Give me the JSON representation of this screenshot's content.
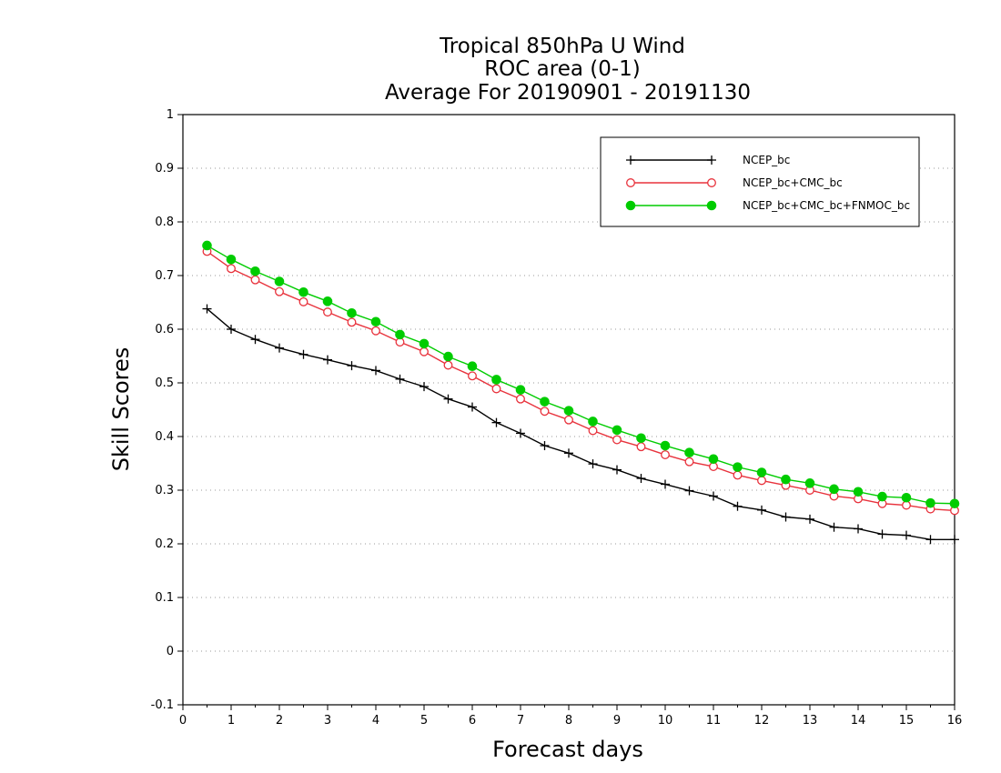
{
  "chart_data": {
    "type": "line",
    "title": [
      "Tropical 850hPa U Wind",
      "ROC area (0-1)",
      "Average For 20190901 - 20191130"
    ],
    "xlabel": "Forecast days",
    "ylabel": "Skill Scores",
    "xlim": [
      0,
      16
    ],
    "ylim": [
      -0.1,
      1
    ],
    "xticks": [
      "0",
      "1",
      "2",
      "3",
      "4",
      "5",
      "6",
      "7",
      "8",
      "9",
      "10",
      "11",
      "12",
      "13",
      "14",
      "15",
      "16"
    ],
    "yticks": [
      "-0.1",
      "0",
      "0.1",
      "0.2",
      "0.3",
      "0.4",
      "0.5",
      "0.6",
      "0.7",
      "0.8",
      "0.9",
      "1"
    ],
    "grid": "horizontal dotted",
    "legend_position": "top-right",
    "x": [
      0.5,
      1,
      1.5,
      2,
      2.5,
      3,
      3.5,
      4,
      4.5,
      5,
      5.5,
      6,
      6.5,
      7,
      7.5,
      8,
      8.5,
      9,
      9.5,
      10,
      10.5,
      11,
      11.5,
      12,
      12.5,
      13,
      13.5,
      14,
      14.5,
      15,
      15.5,
      16
    ],
    "series": [
      {
        "name": "NCEP_bc",
        "color": "#000000",
        "marker": "plus",
        "values": [
          0.638,
          0.6,
          0.581,
          0.565,
          0.553,
          0.543,
          0.532,
          0.523,
          0.507,
          0.493,
          0.47,
          0.455,
          0.426,
          0.406,
          0.383,
          0.369,
          0.349,
          0.338,
          0.322,
          0.311,
          0.299,
          0.289,
          0.27,
          0.263,
          0.25,
          0.246,
          0.231,
          0.228,
          0.218,
          0.216,
          0.208,
          0.208
        ]
      },
      {
        "name": "NCEP_bc+CMC_bc",
        "color": "#e8323c",
        "marker": "open-circle",
        "values": [
          0.745,
          0.713,
          0.692,
          0.67,
          0.651,
          0.632,
          0.613,
          0.597,
          0.576,
          0.558,
          0.533,
          0.513,
          0.489,
          0.47,
          0.447,
          0.431,
          0.411,
          0.394,
          0.381,
          0.366,
          0.353,
          0.344,
          0.328,
          0.318,
          0.309,
          0.3,
          0.289,
          0.284,
          0.275,
          0.272,
          0.265,
          0.262
        ]
      },
      {
        "name": "NCEP_bc+CMC_bc+FNMOC_bc",
        "color": "#00cc00",
        "marker": "filled-circle",
        "values": [
          0.756,
          0.73,
          0.708,
          0.689,
          0.669,
          0.652,
          0.63,
          0.614,
          0.59,
          0.573,
          0.549,
          0.531,
          0.506,
          0.487,
          0.465,
          0.448,
          0.428,
          0.412,
          0.397,
          0.383,
          0.37,
          0.358,
          0.343,
          0.333,
          0.32,
          0.313,
          0.302,
          0.297,
          0.288,
          0.286,
          0.276,
          0.275
        ]
      }
    ]
  }
}
